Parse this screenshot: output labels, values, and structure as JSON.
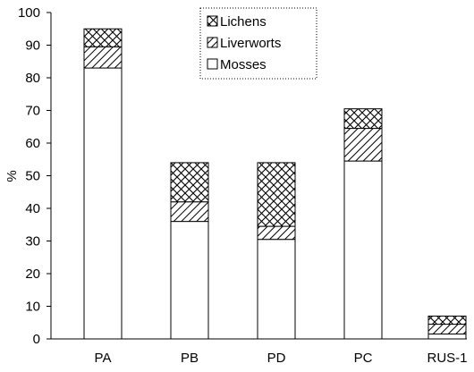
{
  "chart_data": {
    "type": "bar",
    "stacked": true,
    "categories": [
      "PA",
      "PB",
      "PD",
      "PC",
      "RUS-1"
    ],
    "series": [
      {
        "name": "Mosses",
        "values": [
          83,
          36,
          30.5,
          54.5,
          1.5
        ],
        "pattern": "solid",
        "color": "#ffffff"
      },
      {
        "name": "Liverworts",
        "values": [
          6.5,
          6,
          4,
          10,
          3
        ],
        "pattern": "diagonal-hatch",
        "color": "#000000"
      },
      {
        "name": "Lichens",
        "values": [
          5.5,
          12,
          19.5,
          6,
          2.5
        ],
        "pattern": "crosshatch",
        "color": "#000000"
      }
    ],
    "legend_order": [
      "Lichens",
      "Liverworts",
      "Mosses"
    ],
    "legend_placement": "top-center",
    "title": "",
    "xlabel": "",
    "ylabel": "%",
    "ylim": [
      0,
      100
    ],
    "yticks": [
      0,
      10,
      20,
      30,
      40,
      50,
      60,
      70,
      80,
      90,
      100
    ],
    "grid": false
  }
}
